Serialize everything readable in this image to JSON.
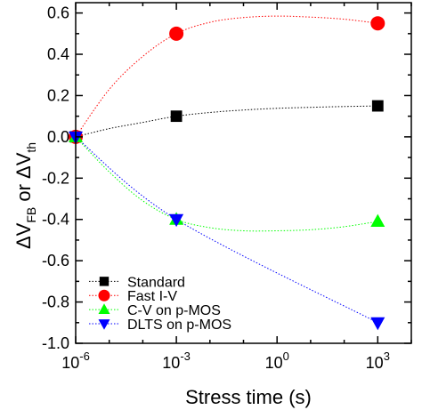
{
  "chart_data": {
    "type": "scatter",
    "title": "",
    "xlabel": "Stress time (s)",
    "ylabel": {
      "main": "ΔV",
      "sub1": "FB",
      "mid": " or ΔV",
      "sub2": "th"
    },
    "xscale": "log",
    "xlim": [
      1e-06,
      10000.0
    ],
    "ylim": [
      -1.0,
      0.65
    ],
    "x_ticks": [
      {
        "value": 1e-06,
        "base": "10",
        "exp": "-6"
      },
      {
        "value": 0.001,
        "base": "10",
        "exp": "-3"
      },
      {
        "value": 1,
        "base": "10",
        "exp": "0"
      },
      {
        "value": 1000.0,
        "base": "10",
        "exp": "3"
      }
    ],
    "y_ticks": [
      "0.6",
      "0.4",
      "0.2",
      "0.0",
      "-0.2",
      "-0.4",
      "-0.6",
      "-0.8",
      "-1.0"
    ],
    "y_tick_values": [
      0.6,
      0.4,
      0.2,
      0.0,
      -0.2,
      -0.4,
      -0.6,
      -0.8,
      -1.0
    ],
    "legend": {
      "position": "bottom-left"
    },
    "series": [
      {
        "name": "Standard",
        "marker": "square",
        "color": "#000000",
        "points": [
          [
            1e-06,
            0.0
          ],
          [
            0.001,
            0.1
          ],
          [
            1000,
            0.15
          ]
        ],
        "fit": [
          [
            1e-06,
            0.0
          ],
          [
            1e-05,
            0.04
          ],
          [
            0.0001,
            0.07
          ],
          [
            0.001,
            0.1
          ],
          [
            0.01,
            0.118
          ],
          [
            0.1,
            0.13
          ],
          [
            1,
            0.138
          ],
          [
            10,
            0.143
          ],
          [
            100,
            0.147
          ],
          [
            1000,
            0.15
          ]
        ]
      },
      {
        "name": "Fast I-V",
        "marker": "circle",
        "color": "#ff0000",
        "points": [
          [
            1e-06,
            0.0
          ],
          [
            0.001,
            0.5
          ],
          [
            1000,
            0.55
          ]
        ],
        "fit": [
          [
            1e-06,
            0.0
          ],
          [
            1e-05,
            0.23
          ],
          [
            0.0001,
            0.39
          ],
          [
            0.001,
            0.5
          ],
          [
            0.01,
            0.555
          ],
          [
            0.1,
            0.578
          ],
          [
            1,
            0.585
          ],
          [
            10,
            0.58
          ],
          [
            100,
            0.57
          ],
          [
            1000,
            0.55
          ]
        ]
      },
      {
        "name": "C-V on p-MOS",
        "marker": "triangle-up",
        "color": "#00ff00",
        "points": [
          [
            1e-06,
            0.0
          ],
          [
            0.001,
            -0.4
          ],
          [
            1000,
            -0.41
          ]
        ],
        "fit": [
          [
            1e-06,
            0.0
          ],
          [
            1e-05,
            -0.17
          ],
          [
            0.0001,
            -0.31
          ],
          [
            0.001,
            -0.4
          ],
          [
            0.01,
            -0.44
          ],
          [
            0.1,
            -0.455
          ],
          [
            1,
            -0.455
          ],
          [
            10,
            -0.45
          ],
          [
            100,
            -0.435
          ],
          [
            1000,
            -0.41
          ]
        ]
      },
      {
        "name": "DLTS on p-MOS",
        "marker": "triangle-down",
        "color": "#0000ff",
        "points": [
          [
            1e-06,
            0.0
          ],
          [
            0.001,
            -0.4
          ],
          [
            1000,
            -0.9
          ]
        ],
        "fit": [
          [
            1e-06,
            0.0
          ],
          [
            0.001,
            -0.4
          ],
          [
            1000,
            -0.9
          ]
        ]
      }
    ]
  }
}
